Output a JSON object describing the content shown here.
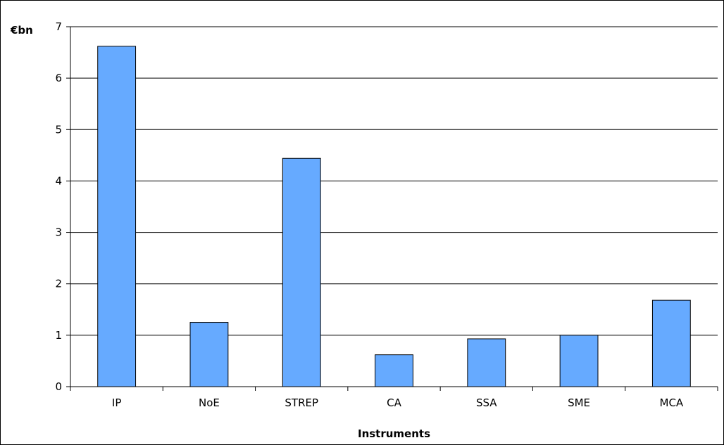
{
  "chart_data": {
    "type": "bar",
    "categories": [
      "IP",
      "NoE",
      "STREP",
      "CA",
      "SSA",
      "SME",
      "MCA"
    ],
    "values": [
      6.62,
      1.25,
      4.44,
      0.62,
      0.93,
      1.0,
      1.68
    ],
    "title": "",
    "xlabel": "Instruments",
    "ylabel": "€bn",
    "ylim": [
      0,
      7
    ],
    "yticks": [
      "0",
      "1",
      "2",
      "3",
      "4",
      "5",
      "6",
      "7"
    ],
    "grid": "horizontal",
    "legend": "none",
    "colors": {
      "bar": "#66AAFF",
      "bar_stroke": "#000000",
      "grid": "#000000"
    }
  }
}
